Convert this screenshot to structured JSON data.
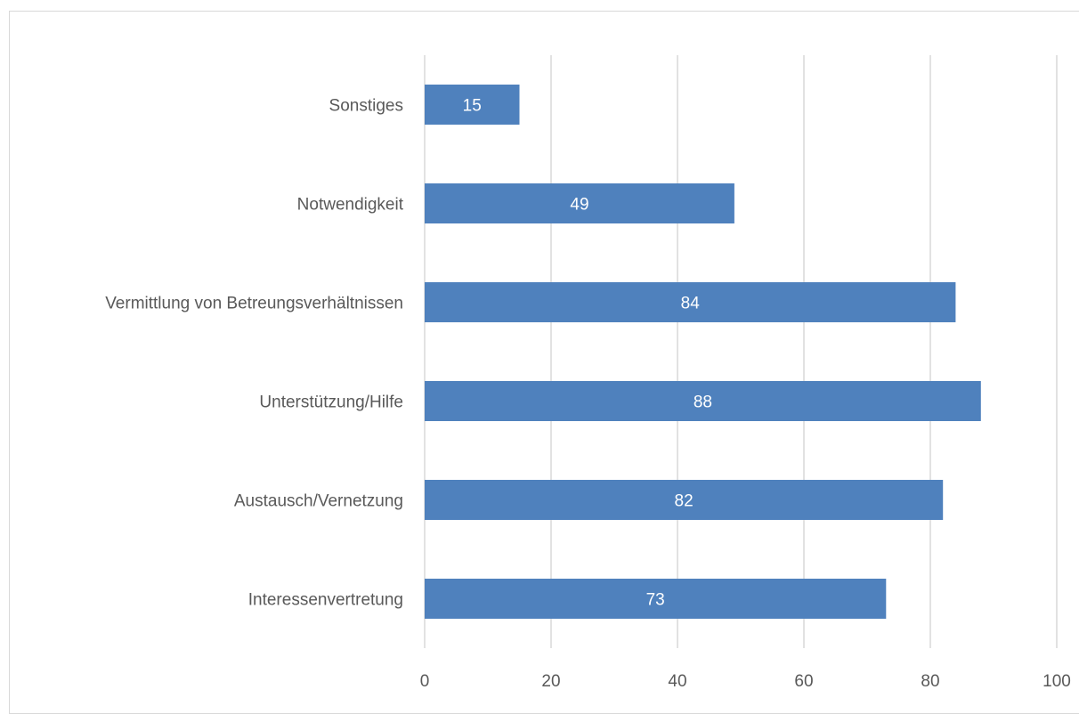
{
  "chart_data": {
    "type": "bar",
    "orientation": "horizontal",
    "title": "",
    "xlabel": "",
    "ylabel": "",
    "categories": [
      "Sonstiges",
      "Notwendigkeit",
      "Vermittlung von Betreungsverhältnissen",
      "Unterstützung/Hilfe",
      "Austausch/Vernetzung",
      "Interessenvertretung"
    ],
    "values": [
      15,
      49,
      84,
      88,
      82,
      73
    ],
    "xlim": [
      0,
      100
    ],
    "x_ticks": [
      0,
      20,
      40,
      60,
      80,
      100
    ],
    "grid": "vertical",
    "legend": "none",
    "data_labels": true,
    "bar_color": "#4f81bd",
    "grid_color": "#d9d9d9",
    "text_color": "#595959",
    "data_label_color": "#ffffff"
  }
}
